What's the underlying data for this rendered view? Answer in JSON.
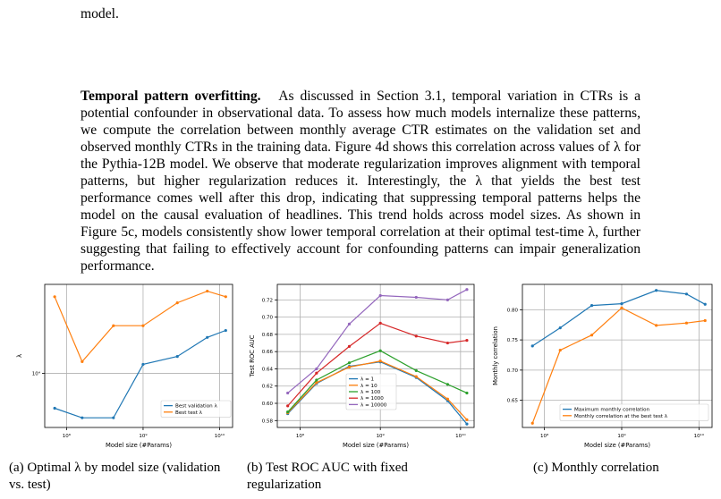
{
  "page": {
    "intro_text": "model.",
    "heading": "Temporal pattern overfitting.",
    "body_text": "As discussed in Section 3.1, temporal variation in CTRs is a potential confounder in observational data. To assess how much models internalize these patterns, we compute the correlation between monthly average CTR estimates on the validation set and observed monthly CTRs in the training data. Figure 4d shows this correlation across values of λ for the Pythia-12B model. We observe that moderate regularization improves alignment with temporal patterns, but higher regularization reduces it. Interestingly, the λ that yields the best test performance comes well after this drop, indicating that suppressing temporal patterns helps the model on the causal evaluation of headlines. This trend holds across model sizes. As shown in Figure 5c, models consistently show lower temporal correlation at their optimal test-time λ, further suggesting that failing to effectively account for confounding patterns can impair generalization performance."
  },
  "captions": {
    "a": "(a) Optimal λ by model size (validation vs. test)",
    "b": "(b) Test ROC AUC with fixed regularization",
    "c": "(c) Monthly correlation"
  },
  "colors": {
    "blue": "#1f77b4",
    "orange": "#ff7f0e",
    "green": "#2ca02c",
    "red": "#d62728",
    "purple": "#9467bd"
  },
  "chart_data": [
    {
      "type": "line",
      "xlabel": "Model size (#Params)",
      "ylabel": "λ",
      "x_scale": "log",
      "y_scale": "log",
      "x": [
        70000000.0,
        160000000.0,
        410000000.0,
        1000000000.0,
        2800000000.0,
        6900000000.0,
        12000000000.0
      ],
      "xticks": [
        {
          "v": 100000000.0,
          "label": "10⁸"
        },
        {
          "v": 1000000000.0,
          "label": "10⁹"
        },
        {
          "v": 10000000000.0,
          "label": "10¹⁰"
        }
      ],
      "yticks": [
        {
          "v": 10000,
          "label": "10⁴"
        }
      ],
      "ylim": [
        4300,
        40000
      ],
      "series": [
        {
          "name": "Best validation λ",
          "color": "#1f77b4",
          "values": [
            5800,
            5000,
            5000,
            11500,
            13000,
            17500,
            19500
          ]
        },
        {
          "name": "Best test λ",
          "color": "#ff7f0e",
          "values": [
            33000,
            12000,
            21000,
            21000,
            30000,
            36000,
            33000
          ]
        }
      ],
      "legend": "lower-right",
      "grid": true
    },
    {
      "type": "line",
      "xlabel": "Model size (#Params)",
      "ylabel": "Test ROC AUC",
      "x_scale": "log",
      "x": [
        70000000.0,
        160000000.0,
        410000000.0,
        1000000000.0,
        2800000000.0,
        6900000000.0,
        12000000000.0
      ],
      "xticks": [
        {
          "v": 100000000.0,
          "label": "10⁸"
        },
        {
          "v": 1000000000.0,
          "label": "10⁹"
        },
        {
          "v": 10000000000.0,
          "label": "10¹⁰"
        }
      ],
      "yticks": [
        0.58,
        0.6,
        0.62,
        0.64,
        0.66,
        0.68,
        0.7,
        0.72
      ],
      "ylim": [
        0.572,
        0.738
      ],
      "series": [
        {
          "name": "λ = 1",
          "color": "#1f77b4",
          "values": [
            0.588,
            0.623,
            0.643,
            0.648,
            0.63,
            0.603,
            0.576
          ]
        },
        {
          "name": "λ = 10",
          "color": "#ff7f0e",
          "values": [
            0.589,
            0.624,
            0.642,
            0.649,
            0.631,
            0.605,
            0.581
          ]
        },
        {
          "name": "λ = 100",
          "color": "#2ca02c",
          "values": [
            0.59,
            0.627,
            0.647,
            0.661,
            0.638,
            0.622,
            0.612
          ]
        },
        {
          "name": "λ = 1000",
          "color": "#d62728",
          "values": [
            0.597,
            0.635,
            0.666,
            0.693,
            0.678,
            0.67,
            0.673
          ]
        },
        {
          "name": "λ = 10000",
          "color": "#9467bd",
          "values": [
            0.612,
            0.64,
            0.692,
            0.725,
            0.723,
            0.72,
            0.732
          ]
        }
      ],
      "legend": "lower-center",
      "grid": true
    },
    {
      "type": "line",
      "xlabel": "Model size (#Params)",
      "ylabel": "Monthly correlation",
      "x_scale": "log",
      "x": [
        70000000.0,
        160000000.0,
        410000000.0,
        1000000000.0,
        2800000000.0,
        6900000000.0,
        12000000000.0
      ],
      "xticks": [
        {
          "v": 100000000.0,
          "label": "10⁸"
        },
        {
          "v": 1000000000.0,
          "label": "10⁹"
        },
        {
          "v": 10000000000.0,
          "label": "10¹⁰"
        }
      ],
      "yticks": [
        0.65,
        0.7,
        0.75,
        0.8
      ],
      "ylim": [
        0.605,
        0.842
      ],
      "series": [
        {
          "name": "Maximum monthly correlation",
          "color": "#1f77b4",
          "values": [
            0.74,
            0.77,
            0.807,
            0.81,
            0.832,
            0.826,
            0.809
          ]
        },
        {
          "name": "Monthly correlation at the best test λ",
          "color": "#ff7f0e",
          "values": [
            0.612,
            0.733,
            0.758,
            0.803,
            0.774,
            0.778,
            0.782
          ]
        }
      ],
      "legend": "lower-right",
      "grid": true
    }
  ]
}
